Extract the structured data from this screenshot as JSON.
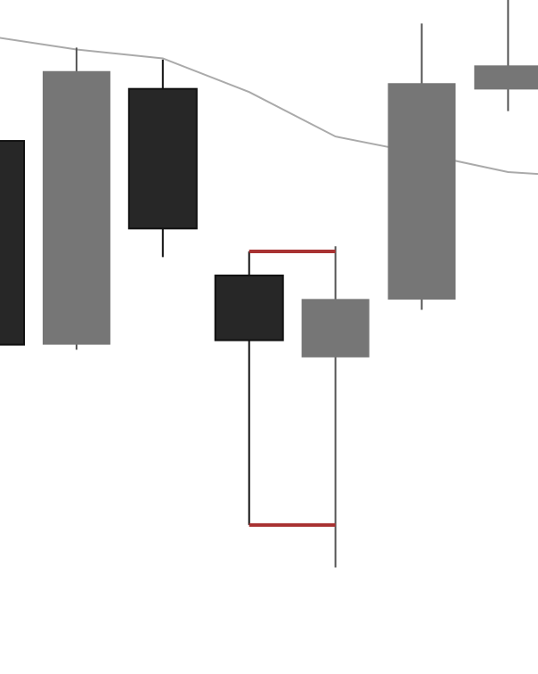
{
  "chart_data": {
    "type": "candlestick",
    "title": "",
    "xlabel": "",
    "ylabel": "",
    "grid": false,
    "ylim": [
      0,
      100
    ],
    "colors": {
      "bearish": "#272727",
      "bullish": "#767676",
      "wick_dark": "#111111",
      "wick_light": "#555555",
      "moving_average": "#aaaaaa",
      "highlight": "#a83232"
    },
    "candles": [
      {
        "index": 0,
        "open": 77.8,
        "close": 45.7,
        "high": 77.8,
        "low": 45.7,
        "direction": "down"
      },
      {
        "index": 1,
        "open": 45.7,
        "close": 88.8,
        "high": 92.5,
        "low": 44.9,
        "direction": "up"
      },
      {
        "index": 2,
        "open": 86.0,
        "close": 64.0,
        "high": 90.6,
        "low": 59.5,
        "direction": "down"
      },
      {
        "index": 3,
        "open": 56.6,
        "close": 46.4,
        "high": 60.4,
        "low": 17.3,
        "direction": "down"
      },
      {
        "index": 4,
        "open": 43.7,
        "close": 52.9,
        "high": 61.2,
        "low": 10.6,
        "direction": "up"
      },
      {
        "index": 5,
        "open": 52.8,
        "close": 86.9,
        "high": 96.3,
        "low": 51.2,
        "direction": "up"
      },
      {
        "index": 6,
        "open": 85.9,
        "close": 89.7,
        "high": 100.0,
        "low": 82.5,
        "direction": "up"
      }
    ],
    "moving_average": [
      {
        "index": -0.6,
        "value": 95.5
      },
      {
        "index": 1,
        "value": 92.2
      },
      {
        "index": 2,
        "value": 90.8
      },
      {
        "index": 3,
        "value": 85.5
      },
      {
        "index": 4,
        "value": 78.5
      },
      {
        "index": 5,
        "value": 75.8
      },
      {
        "index": 6,
        "value": 72.9
      },
      {
        "index": 6.35,
        "value": 72.6
      }
    ],
    "highlight_range": {
      "from_index": 3,
      "to_index": 4,
      "upper": 60.4,
      "lower": 17.3
    }
  }
}
